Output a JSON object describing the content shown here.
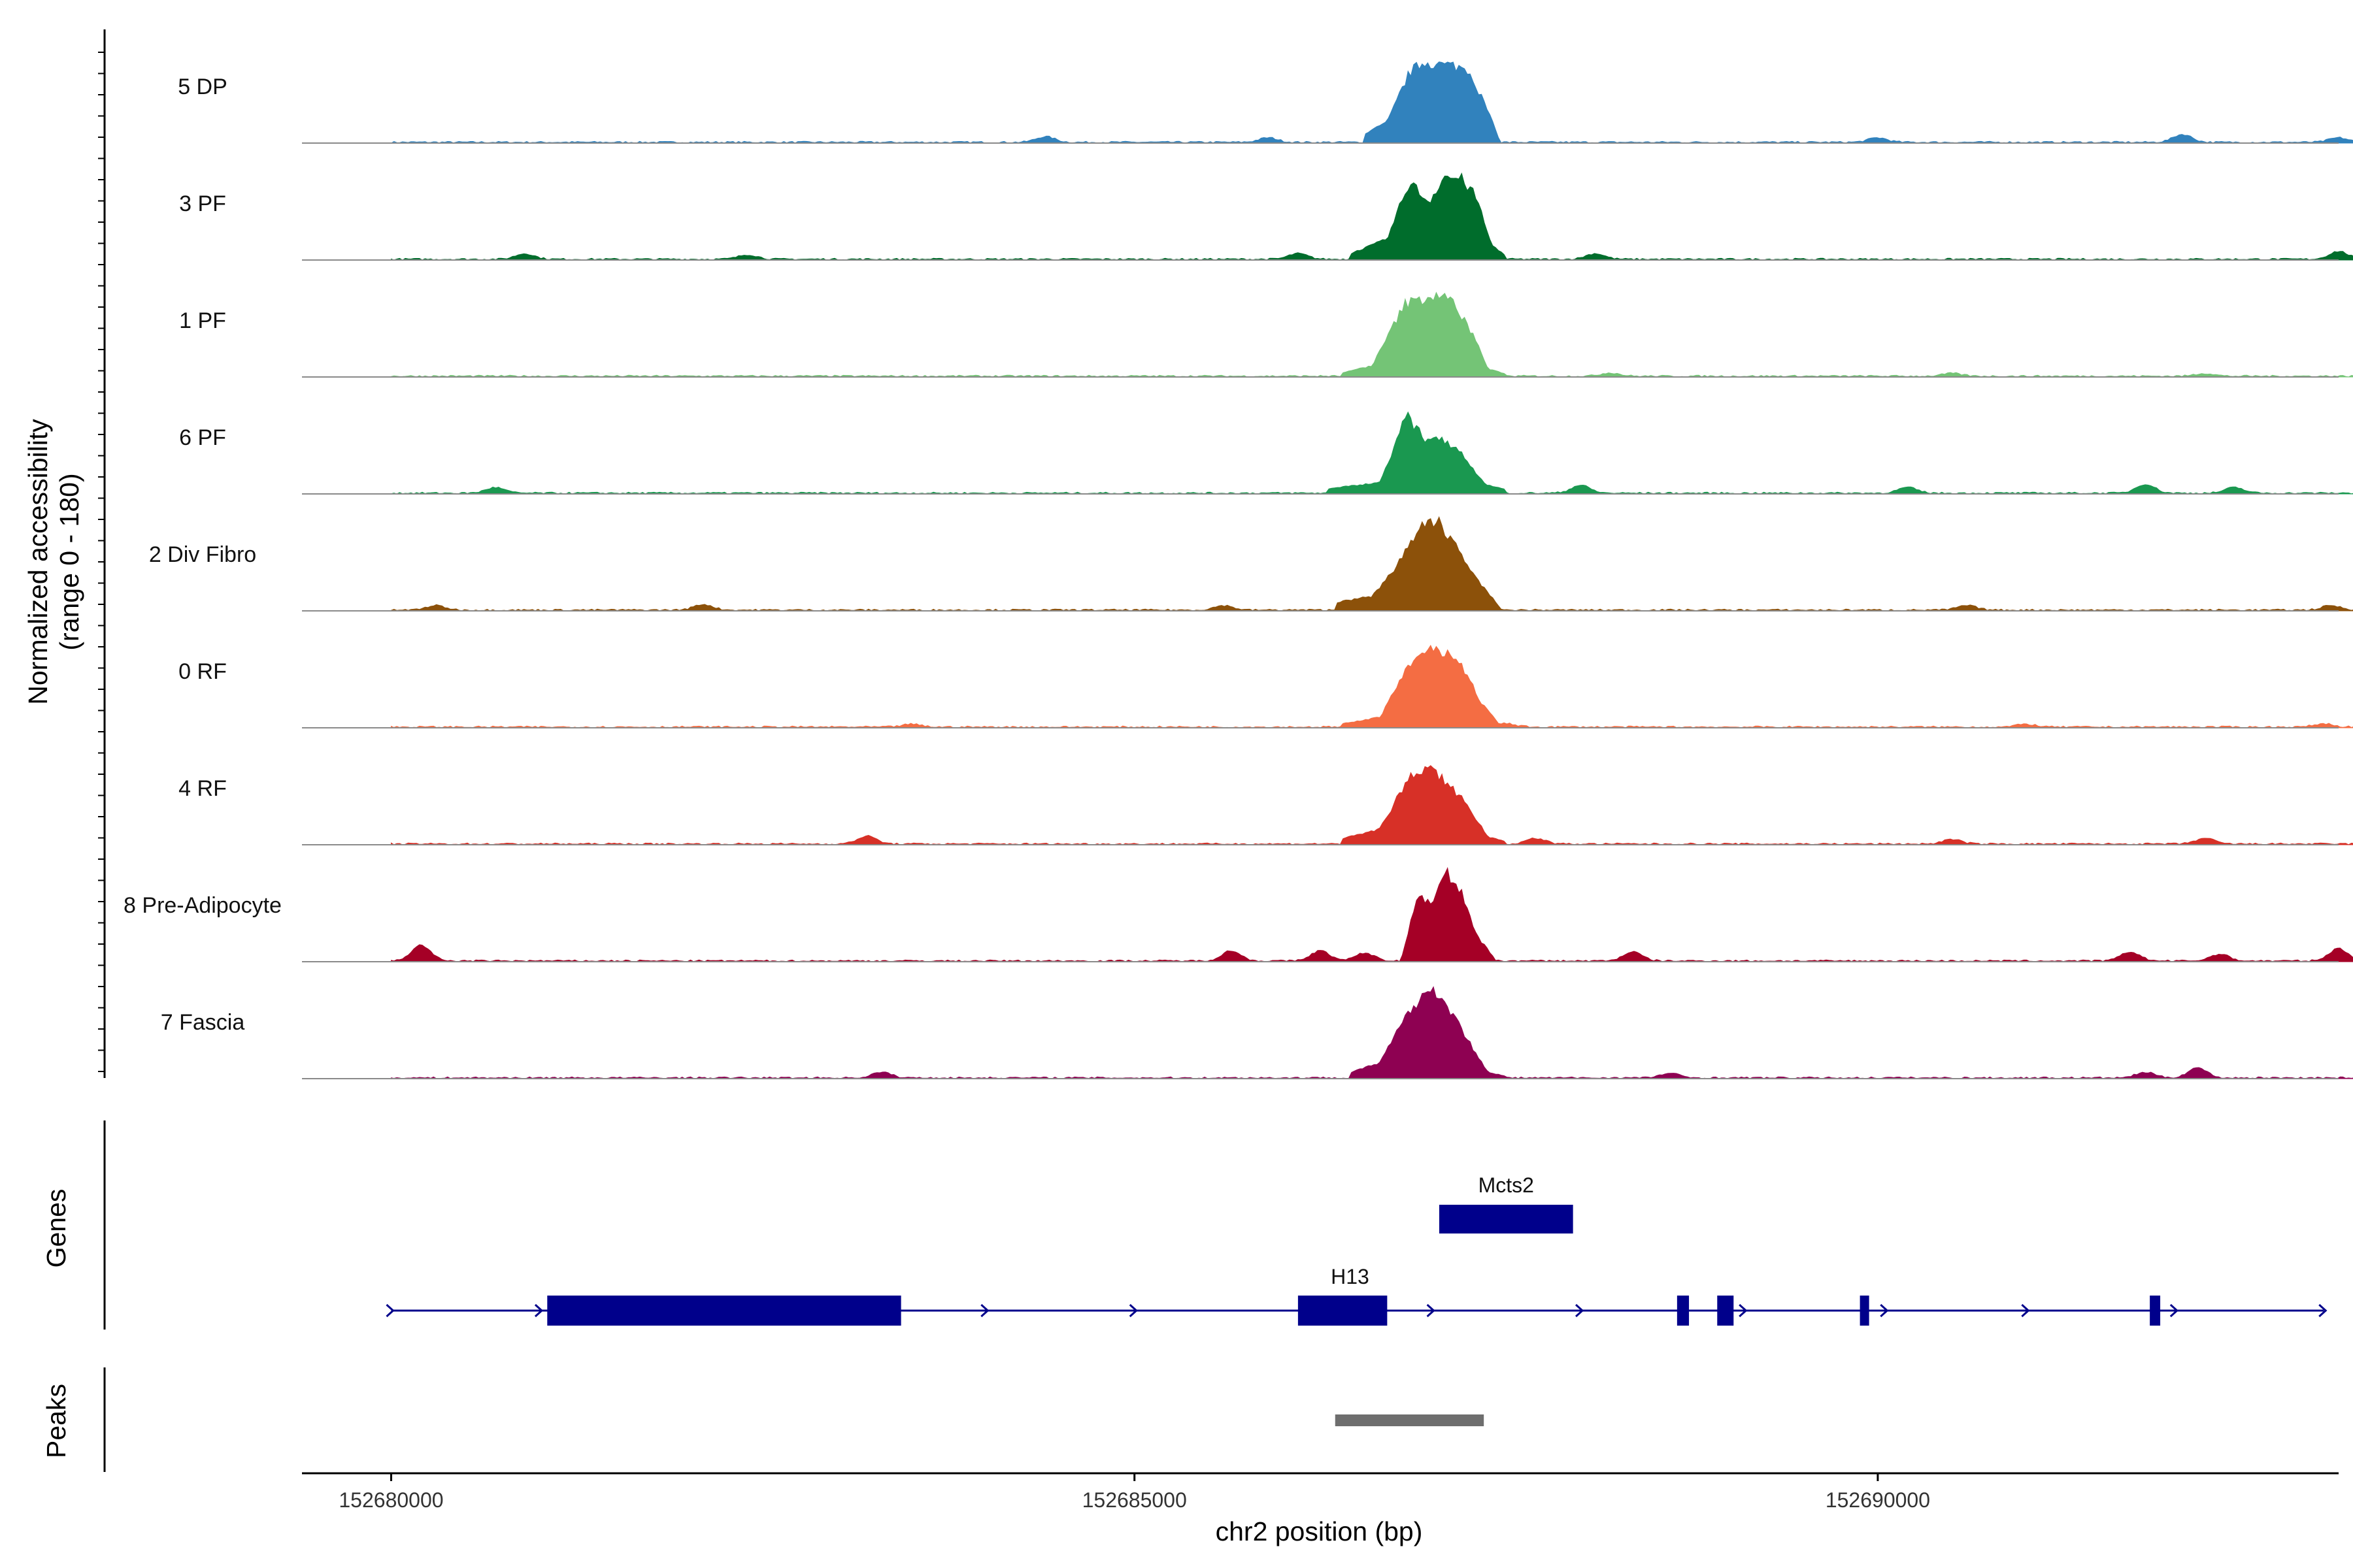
{
  "chart_data": {
    "type": "area",
    "title": "",
    "xlabel": "chr2 position (bp)",
    "ylabel_line1": "Normalized accessibility",
    "ylabel_line2": "(range 0 - 180)",
    "xlim": [
      152679400,
      152693100
    ],
    "ylim": [
      0,
      180
    ],
    "region": [
      152680000,
      152693300
    ],
    "x_ticks": [
      {
        "value": 152680000,
        "label": "152680000"
      },
      {
        "value": 152685000,
        "label": "152685000"
      },
      {
        "value": 152690000,
        "label": "152690000"
      }
    ],
    "series": [
      {
        "name": "5 DP",
        "label": "5 DP",
        "color": "#3182bd",
        "peak": [
          {
            "x": 152686550,
            "y": 18
          },
          {
            "x": 152686700,
            "y": 40
          },
          {
            "x": 152686850,
            "y": 135
          },
          {
            "x": 152686950,
            "y": 155
          },
          {
            "x": 152687050,
            "y": 150
          },
          {
            "x": 152687150,
            "y": 148
          },
          {
            "x": 152687250,
            "y": 140
          },
          {
            "x": 152687380,
            "y": 60
          },
          {
            "x": 152687450,
            "y": 10
          }
        ],
        "bumps": [
          {
            "x": 152684400,
            "y": 10
          },
          {
            "x": 152685900,
            "y": 8
          },
          {
            "x": 152690000,
            "y": 8
          },
          {
            "x": 152692050,
            "y": 14
          },
          {
            "x": 152693100,
            "y": 8
          }
        ]
      },
      {
        "name": "3 PF",
        "label": "3 PF",
        "color": "#006d2c",
        "peak": [
          {
            "x": 152686450,
            "y": 12
          },
          {
            "x": 152686700,
            "y": 40
          },
          {
            "x": 152686850,
            "y": 150
          },
          {
            "x": 152686980,
            "y": 110
          },
          {
            "x": 152687080,
            "y": 160
          },
          {
            "x": 152687200,
            "y": 155
          },
          {
            "x": 152687300,
            "y": 120
          },
          {
            "x": 152687400,
            "y": 30
          },
          {
            "x": 152687500,
            "y": 8
          }
        ],
        "bumps": [
          {
            "x": 152680900,
            "y": 10
          },
          {
            "x": 152682400,
            "y": 8
          },
          {
            "x": 152686100,
            "y": 10
          },
          {
            "x": 152688100,
            "y": 10
          },
          {
            "x": 152693100,
            "y": 14
          }
        ]
      },
      {
        "name": "1 PF",
        "label": "1 PF",
        "color": "#74c476",
        "peak": [
          {
            "x": 152686400,
            "y": 8
          },
          {
            "x": 152686600,
            "y": 22
          },
          {
            "x": 152686820,
            "y": 140
          },
          {
            "x": 152686950,
            "y": 150
          },
          {
            "x": 152687050,
            "y": 158
          },
          {
            "x": 152687150,
            "y": 140
          },
          {
            "x": 152687280,
            "y": 80
          },
          {
            "x": 152687380,
            "y": 15
          },
          {
            "x": 152687500,
            "y": 6
          }
        ],
        "bumps": [
          {
            "x": 152688200,
            "y": 6
          },
          {
            "x": 152690500,
            "y": 5
          },
          {
            "x": 152692200,
            "y": 5
          }
        ]
      },
      {
        "name": "6 PF",
        "label": "6 PF",
        "color": "#1a9850",
        "peak": [
          {
            "x": 152686300,
            "y": 10
          },
          {
            "x": 152686650,
            "y": 22
          },
          {
            "x": 152686830,
            "y": 150
          },
          {
            "x": 152686950,
            "y": 105
          },
          {
            "x": 152687050,
            "y": 110
          },
          {
            "x": 152687200,
            "y": 80
          },
          {
            "x": 152687350,
            "y": 20
          },
          {
            "x": 152687500,
            "y": 8
          }
        ],
        "bumps": [
          {
            "x": 152680700,
            "y": 10
          },
          {
            "x": 152688000,
            "y": 14
          },
          {
            "x": 152690200,
            "y": 10
          },
          {
            "x": 152691800,
            "y": 16
          },
          {
            "x": 152692400,
            "y": 10
          }
        ]
      },
      {
        "name": "2 Div Fibro",
        "label": "2 Div Fibro",
        "color": "#8c510a",
        "peak": [
          {
            "x": 152686350,
            "y": 16
          },
          {
            "x": 152686600,
            "y": 28
          },
          {
            "x": 152686800,
            "y": 100
          },
          {
            "x": 152686920,
            "y": 160
          },
          {
            "x": 152687050,
            "y": 170
          },
          {
            "x": 152687150,
            "y": 130
          },
          {
            "x": 152687300,
            "y": 60
          },
          {
            "x": 152687450,
            "y": 10
          }
        ],
        "bumps": [
          {
            "x": 152680300,
            "y": 8
          },
          {
            "x": 152682100,
            "y": 10
          },
          {
            "x": 152685600,
            "y": 8
          },
          {
            "x": 152690600,
            "y": 8
          },
          {
            "x": 152693050,
            "y": 8
          }
        ]
      },
      {
        "name": "0 RF",
        "label": "0 RF",
        "color": "#f46d43",
        "peak": [
          {
            "x": 152686400,
            "y": 8
          },
          {
            "x": 152686650,
            "y": 20
          },
          {
            "x": 152686850,
            "y": 120
          },
          {
            "x": 152686980,
            "y": 150
          },
          {
            "x": 152687080,
            "y": 145
          },
          {
            "x": 152687200,
            "y": 120
          },
          {
            "x": 152687330,
            "y": 50
          },
          {
            "x": 152687450,
            "y": 8
          }
        ],
        "bumps": [
          {
            "x": 152683500,
            "y": 5
          },
          {
            "x": 152687500,
            "y": 6
          },
          {
            "x": 152691000,
            "y": 5
          },
          {
            "x": 152693000,
            "y": 6
          }
        ]
      },
      {
        "name": "4 RF",
        "label": "4 RF",
        "color": "#d73027",
        "peak": [
          {
            "x": 152686400,
            "y": 12
          },
          {
            "x": 152686650,
            "y": 30
          },
          {
            "x": 152686850,
            "y": 130
          },
          {
            "x": 152686980,
            "y": 145
          },
          {
            "x": 152687100,
            "y": 120
          },
          {
            "x": 152687230,
            "y": 80
          },
          {
            "x": 152687380,
            "y": 15
          },
          {
            "x": 152687500,
            "y": 6
          }
        ],
        "bumps": [
          {
            "x": 152683200,
            "y": 14
          },
          {
            "x": 152687700,
            "y": 10
          },
          {
            "x": 152690500,
            "y": 8
          },
          {
            "x": 152692200,
            "y": 10
          }
        ]
      },
      {
        "name": "8 Pre-Adipocyte",
        "label": "8 Pre-Adipocyte",
        "color": "#a50026",
        "peak": [
          {
            "x": 152686800,
            "y": 10
          },
          {
            "x": 152686900,
            "y": 125
          },
          {
            "x": 152687000,
            "y": 115
          },
          {
            "x": 152687100,
            "y": 170
          },
          {
            "x": 152687200,
            "y": 135
          },
          {
            "x": 152687300,
            "y": 50
          },
          {
            "x": 152687420,
            "y": 8
          }
        ],
        "bumps": [
          {
            "x": 152680200,
            "y": 28
          },
          {
            "x": 152685650,
            "y": 18
          },
          {
            "x": 152686250,
            "y": 18
          },
          {
            "x": 152686550,
            "y": 14
          },
          {
            "x": 152688350,
            "y": 16
          },
          {
            "x": 152691700,
            "y": 16
          },
          {
            "x": 152692300,
            "y": 12
          },
          {
            "x": 152693100,
            "y": 22
          }
        ]
      },
      {
        "name": "7 Fascia",
        "label": "7 Fascia",
        "color": "#8e0152",
        "peak": [
          {
            "x": 152686450,
            "y": 12
          },
          {
            "x": 152686650,
            "y": 30
          },
          {
            "x": 152686850,
            "y": 130
          },
          {
            "x": 152687000,
            "y": 178
          },
          {
            "x": 152687100,
            "y": 140
          },
          {
            "x": 152687250,
            "y": 70
          },
          {
            "x": 152687380,
            "y": 12
          },
          {
            "x": 152687500,
            "y": 5
          }
        ],
        "bumps": [
          {
            "x": 152683300,
            "y": 10
          },
          {
            "x": 152688600,
            "y": 8
          },
          {
            "x": 152691800,
            "y": 10
          },
          {
            "x": 152692150,
            "y": 18
          }
        ]
      }
    ],
    "genes_track_label": "Genes",
    "genes": [
      {
        "name": "Mcts2",
        "label": "Mcts2",
        "color": "#00008b",
        "start": 152687050,
        "end": 152687950,
        "exons": [
          [
            152687050,
            152687950
          ]
        ],
        "strand": "+",
        "show_intron_line": false
      },
      {
        "name": "H13",
        "label": "H13",
        "color": "#00008b",
        "label_position": 152686450,
        "start": 152680000,
        "end": 152693000,
        "strand": "+",
        "show_intron_line": true,
        "exons": [
          [
            152681050,
            152683430
          ],
          [
            152686100,
            152686700
          ],
          [
            152688650,
            152688730
          ],
          [
            152688920,
            152689030
          ],
          [
            152689880,
            152689940
          ],
          [
            152691830,
            152691900
          ]
        ],
        "arrows": [
          152680000,
          152681000,
          152684000,
          152685000,
          152687000,
          152688000,
          152689100,
          152690050,
          152691000,
          152692000,
          152693000
        ]
      }
    ],
    "peaks_track_label": "Peaks",
    "peaks": [
      {
        "start": 152686350,
        "end": 152687350,
        "color": "#6e6e6e"
      }
    ]
  }
}
